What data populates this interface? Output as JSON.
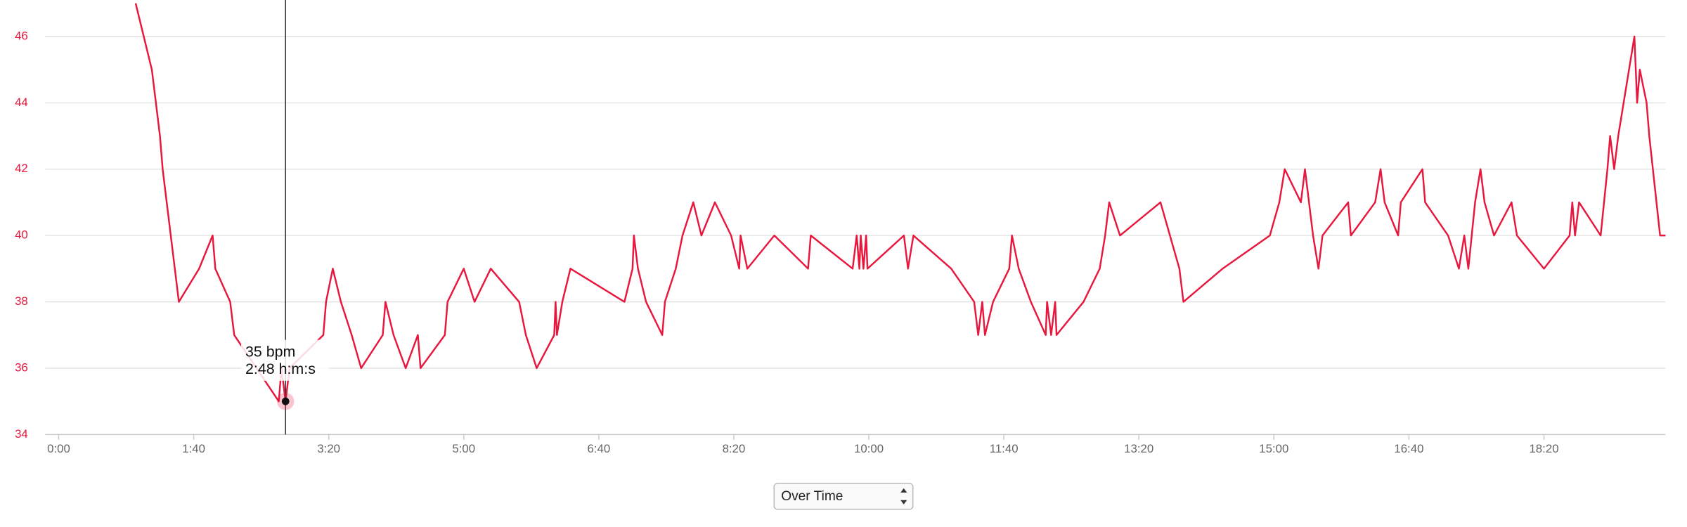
{
  "chart_data": {
    "type": "line",
    "color": "#e8173d",
    "grid": true,
    "xlim": [
      -10,
      1190
    ],
    "ylim": [
      34,
      47.1
    ],
    "yticks": [
      34,
      36,
      38,
      40,
      42,
      44,
      46
    ],
    "xticks": [
      {
        "value": 0,
        "label": "0:00"
      },
      {
        "value": 100,
        "label": "1:40"
      },
      {
        "value": 200,
        "label": "3:20"
      },
      {
        "value": 300,
        "label": "5:00"
      },
      {
        "value": 400,
        "label": "6:40"
      },
      {
        "value": 500,
        "label": "8:20"
      },
      {
        "value": 600,
        "label": "10:00"
      },
      {
        "value": 700,
        "label": "11:40"
      },
      {
        "value": 800,
        "label": "13:20"
      },
      {
        "value": 900,
        "label": "15:00"
      },
      {
        "value": 1000,
        "label": "16:40"
      },
      {
        "value": 1100,
        "label": "18:20"
      }
    ],
    "x": [
      57,
      63,
      69,
      75,
      77,
      80,
      83,
      89,
      104,
      114,
      116,
      127,
      130,
      163,
      165,
      168,
      171,
      196,
      198,
      203,
      209,
      217,
      224,
      240,
      242,
      248,
      257,
      266,
      268,
      286,
      288,
      300,
      308,
      320,
      341,
      346,
      354,
      367,
      368,
      369,
      373,
      379,
      419,
      425,
      426,
      429,
      435,
      447,
      449,
      457,
      462,
      470,
      476,
      486,
      498,
      504,
      505,
      510,
      530,
      555,
      557,
      588,
      591,
      593,
      594,
      596,
      598,
      599,
      626,
      629,
      633,
      661,
      678,
      681,
      684,
      686,
      692,
      704,
      706,
      711,
      720,
      731,
      732,
      735,
      738,
      739,
      759,
      771,
      775,
      778,
      786,
      816,
      823,
      830,
      833,
      862,
      897,
      904,
      908,
      920,
      923,
      929,
      933,
      936,
      955,
      957,
      975,
      979,
      982,
      992,
      994,
      1010,
      1012,
      1029,
      1037,
      1041,
      1044,
      1049,
      1053,
      1056,
      1063,
      1076,
      1080,
      1100,
      1119,
      1121,
      1123,
      1126,
      1142,
      1147,
      1149,
      1152,
      1155,
      1167,
      1169,
      1171,
      1176,
      1178,
      1186,
      1190
    ],
    "values": [
      47,
      46,
      45,
      43,
      42,
      41,
      40,
      38,
      39,
      40,
      39,
      38,
      37,
      35,
      36,
      35,
      36,
      37,
      38,
      39,
      38,
      37,
      36,
      37,
      38,
      37,
      36,
      37,
      36,
      37,
      38,
      39,
      38,
      39,
      38,
      37,
      36,
      37,
      38,
      37,
      38,
      39,
      38,
      39,
      40,
      39,
      38,
      37,
      38,
      39,
      40,
      41,
      40,
      41,
      40,
      39,
      40,
      39,
      40,
      39,
      40,
      39,
      40,
      39,
      40,
      39,
      40,
      39,
      40,
      39,
      40,
      39,
      38,
      37,
      38,
      37,
      38,
      39,
      40,
      39,
      38,
      37,
      38,
      37,
      38,
      37,
      38,
      39,
      40,
      41,
      40,
      41,
      40,
      39,
      38,
      39,
      40,
      41,
      42,
      41,
      42,
      40,
      39,
      40,
      41,
      40,
      41,
      42,
      41,
      40,
      41,
      42,
      41,
      40,
      39,
      40,
      39,
      41,
      42,
      41,
      40,
      41,
      40,
      39,
      40,
      41,
      40,
      41,
      40,
      42,
      43,
      42,
      43,
      46,
      44,
      45,
      44,
      43,
      40,
      40
    ],
    "tooltip": {
      "x": 168,
      "value": 35,
      "label": "35 bpm",
      "time": "2:48 h:m:s"
    }
  },
  "controls": {
    "view_select": "Over Time"
  }
}
